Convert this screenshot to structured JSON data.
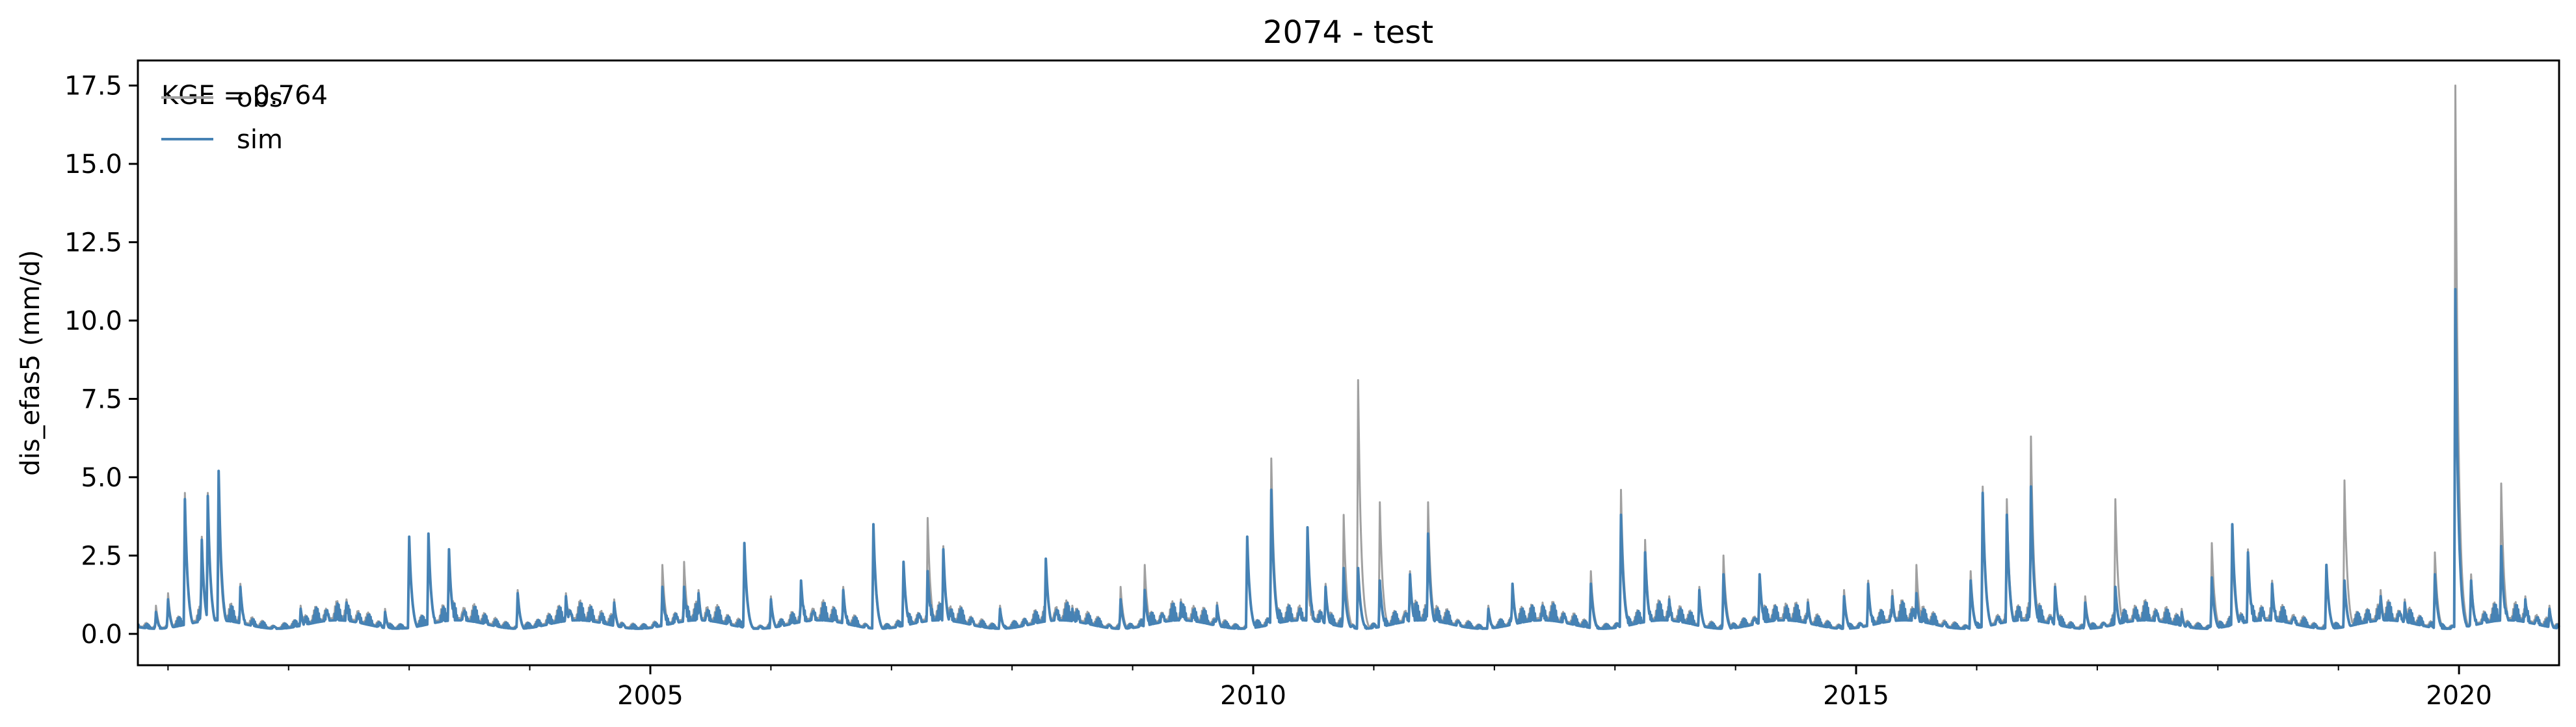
{
  "chart_data": {
    "type": "line",
    "title": "2074 - test",
    "ylabel": "dis_efas5 (mm/d)",
    "xlabel": "",
    "xlim": [
      2000.75,
      2020.83
    ],
    "ylim": [
      -1.0,
      18.3
    ],
    "yticks": [
      0.0,
      2.5,
      5.0,
      7.5,
      10.0,
      12.5,
      15.0,
      17.5
    ],
    "ytick_labels": [
      "0.0",
      "2.5",
      "5.0",
      "7.5",
      "10.0",
      "12.5",
      "15.0",
      "17.5"
    ],
    "xticks": [
      2005,
      2010,
      2015,
      2020
    ],
    "xtick_labels": [
      "2005",
      "2010",
      "2015",
      "2020"
    ],
    "x_minor_ticks": [
      2001,
      2002,
      2003,
      2004,
      2006,
      2007,
      2008,
      2009,
      2011,
      2012,
      2013,
      2014,
      2016,
      2017,
      2018,
      2019
    ],
    "annotation": "KGE = 0.764",
    "legend_position": "upper-left",
    "grid": false,
    "series": [
      {
        "name": "obs",
        "color": "#a0a0a0",
        "baseline": 0.35,
        "peaks": [
          [
            2000.9,
            0.9
          ],
          [
            2001.0,
            1.3
          ],
          [
            2001.14,
            4.5
          ],
          [
            2001.28,
            3.1
          ],
          [
            2001.33,
            4.5
          ],
          [
            2001.42,
            4.2
          ],
          [
            2001.6,
            1.6
          ],
          [
            2002.1,
            0.9
          ],
          [
            2002.48,
            1.1
          ],
          [
            2002.8,
            0.8
          ],
          [
            2003.0,
            2.9
          ],
          [
            2003.16,
            3.2
          ],
          [
            2003.33,
            2.6
          ],
          [
            2003.9,
            1.4
          ],
          [
            2004.3,
            1.3
          ],
          [
            2004.7,
            1.1
          ],
          [
            2005.1,
            2.2
          ],
          [
            2005.28,
            2.3
          ],
          [
            2005.4,
            1.4
          ],
          [
            2005.78,
            2.8
          ],
          [
            2006.0,
            1.2
          ],
          [
            2006.25,
            1.6
          ],
          [
            2006.6,
            1.5
          ],
          [
            2006.85,
            3.2
          ],
          [
            2007.1,
            2.2
          ],
          [
            2007.3,
            3.7
          ],
          [
            2007.43,
            2.8
          ],
          [
            2007.9,
            0.9
          ],
          [
            2008.28,
            2.4
          ],
          [
            2008.5,
            0.9
          ],
          [
            2008.9,
            1.5
          ],
          [
            2009.1,
            2.2
          ],
          [
            2009.4,
            1.1
          ],
          [
            2009.7,
            1.0
          ],
          [
            2009.95,
            3.0
          ],
          [
            2010.15,
            5.6
          ],
          [
            2010.45,
            2.0
          ],
          [
            2010.6,
            1.6
          ],
          [
            2010.75,
            3.8
          ],
          [
            2010.87,
            8.1
          ],
          [
            2011.05,
            4.2
          ],
          [
            2011.3,
            2.0
          ],
          [
            2011.45,
            4.2
          ],
          [
            2011.95,
            0.9
          ],
          [
            2012.15,
            1.6
          ],
          [
            2012.4,
            1.0
          ],
          [
            2012.8,
            2.0
          ],
          [
            2013.05,
            4.6
          ],
          [
            2013.25,
            3.0
          ],
          [
            2013.45,
            1.2
          ],
          [
            2013.7,
            1.5
          ],
          [
            2013.9,
            2.5
          ],
          [
            2014.2,
            1.9
          ],
          [
            2014.6,
            1.1
          ],
          [
            2014.9,
            1.4
          ],
          [
            2015.1,
            1.7
          ],
          [
            2015.3,
            1.4
          ],
          [
            2015.5,
            2.2
          ],
          [
            2015.95,
            2.0
          ],
          [
            2016.05,
            4.7
          ],
          [
            2016.25,
            4.3
          ],
          [
            2016.45,
            6.3
          ],
          [
            2016.65,
            1.6
          ],
          [
            2016.9,
            1.2
          ],
          [
            2017.15,
            4.3
          ],
          [
            2017.4,
            0.9
          ],
          [
            2017.7,
            0.8
          ],
          [
            2017.95,
            2.9
          ],
          [
            2018.12,
            2.9
          ],
          [
            2018.25,
            2.7
          ],
          [
            2018.45,
            1.7
          ],
          [
            2018.9,
            2.2
          ],
          [
            2019.05,
            4.9
          ],
          [
            2019.35,
            1.4
          ],
          [
            2019.55,
            1.1
          ],
          [
            2019.8,
            2.6
          ],
          [
            2019.97,
            17.5
          ],
          [
            2020.1,
            1.9
          ],
          [
            2020.35,
            4.8
          ],
          [
            2020.55,
            1.2
          ],
          [
            2020.75,
            0.9
          ]
        ]
      },
      {
        "name": "sim",
        "color": "#4682b4",
        "baseline": 0.3,
        "peaks": [
          [
            2000.9,
            0.7
          ],
          [
            2001.0,
            1.1
          ],
          [
            2001.14,
            4.3
          ],
          [
            2001.28,
            3.0
          ],
          [
            2001.33,
            4.4
          ],
          [
            2001.42,
            5.2
          ],
          [
            2001.6,
            1.5
          ],
          [
            2002.1,
            0.8
          ],
          [
            2002.48,
            1.0
          ],
          [
            2002.8,
            0.7
          ],
          [
            2003.0,
            3.1
          ],
          [
            2003.16,
            3.2
          ],
          [
            2003.33,
            2.7
          ],
          [
            2003.9,
            1.3
          ],
          [
            2004.3,
            1.2
          ],
          [
            2004.7,
            1.0
          ],
          [
            2005.1,
            1.5
          ],
          [
            2005.28,
            1.5
          ],
          [
            2005.4,
            1.3
          ],
          [
            2005.78,
            2.9
          ],
          [
            2006.0,
            1.1
          ],
          [
            2006.25,
            1.7
          ],
          [
            2006.6,
            1.4
          ],
          [
            2006.85,
            3.5
          ],
          [
            2007.1,
            2.3
          ],
          [
            2007.3,
            2.0
          ],
          [
            2007.43,
            2.7
          ],
          [
            2007.9,
            0.8
          ],
          [
            2008.28,
            2.4
          ],
          [
            2008.5,
            0.8
          ],
          [
            2008.9,
            1.1
          ],
          [
            2009.1,
            1.4
          ],
          [
            2009.4,
            1.0
          ],
          [
            2009.7,
            0.9
          ],
          [
            2009.95,
            3.1
          ],
          [
            2010.15,
            4.6
          ],
          [
            2010.45,
            3.4
          ],
          [
            2010.6,
            1.5
          ],
          [
            2010.75,
            2.1
          ],
          [
            2010.87,
            2.1
          ],
          [
            2011.05,
            1.7
          ],
          [
            2011.3,
            1.9
          ],
          [
            2011.45,
            3.2
          ],
          [
            2011.95,
            0.8
          ],
          [
            2012.15,
            1.6
          ],
          [
            2012.4,
            0.9
          ],
          [
            2012.8,
            1.6
          ],
          [
            2013.05,
            3.8
          ],
          [
            2013.25,
            2.6
          ],
          [
            2013.45,
            1.1
          ],
          [
            2013.7,
            1.4
          ],
          [
            2013.9,
            1.9
          ],
          [
            2014.2,
            1.9
          ],
          [
            2014.6,
            1.0
          ],
          [
            2014.9,
            1.2
          ],
          [
            2015.1,
            1.6
          ],
          [
            2015.3,
            1.2
          ],
          [
            2015.5,
            1.3
          ],
          [
            2015.95,
            1.7
          ],
          [
            2016.05,
            4.5
          ],
          [
            2016.25,
            3.8
          ],
          [
            2016.45,
            4.7
          ],
          [
            2016.65,
            1.5
          ],
          [
            2016.9,
            1.0
          ],
          [
            2017.15,
            1.5
          ],
          [
            2017.4,
            0.8
          ],
          [
            2017.7,
            0.7
          ],
          [
            2017.95,
            1.8
          ],
          [
            2018.12,
            3.5
          ],
          [
            2018.25,
            2.6
          ],
          [
            2018.45,
            1.6
          ],
          [
            2018.9,
            2.2
          ],
          [
            2019.05,
            1.7
          ],
          [
            2019.35,
            1.2
          ],
          [
            2019.55,
            1.0
          ],
          [
            2019.8,
            1.9
          ],
          [
            2019.97,
            11.0
          ],
          [
            2020.1,
            1.7
          ],
          [
            2020.35,
            2.8
          ],
          [
            2020.55,
            1.1
          ],
          [
            2020.75,
            0.8
          ]
        ]
      }
    ]
  }
}
